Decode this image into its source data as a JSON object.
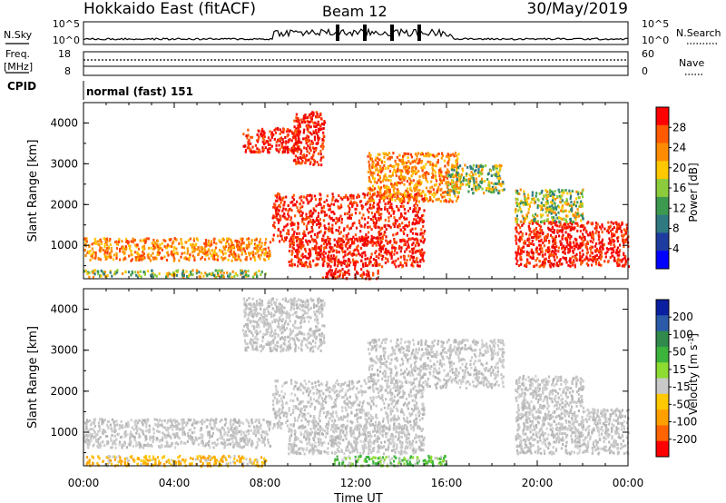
{
  "header": {
    "station": "Hokkaido East (fitACF)",
    "beam": "Beam 12",
    "date": "30/May/2019"
  },
  "status_panel": {
    "nsky_label": "N.Sky",
    "nsearch_label": "N.Search",
    "freq_label_line1": "Freq.",
    "freq_label_line2": "[MHz]",
    "nave_label": "Nave",
    "cpid_label": "CPID",
    "cpid_value": "normal (fast) 151",
    "noise_ticks_left": [
      "10^5",
      "10^0"
    ],
    "noise_ticks_right": [
      "10^5",
      "10^0"
    ],
    "freq_ticks": [
      "18",
      "8"
    ],
    "nave_ticks": [
      "60",
      "0"
    ]
  },
  "colorbars": {
    "power": {
      "label": "Power [dB]",
      "ticks": [
        "28",
        "24",
        "20",
        "16",
        "12",
        "8",
        "4"
      ],
      "colors": [
        "#ff0000",
        "#ff5a00",
        "#ff8c00",
        "#ffc800",
        "#8ccc3c",
        "#3c9a50",
        "#2f7a80",
        "#1e3ca0",
        "#0000ff"
      ]
    },
    "velocity": {
      "label": "Velocity [m s",
      "label_sup": "-1",
      "label_close": "]",
      "ticks": [
        "200",
        "100",
        "50",
        "15",
        "-15",
        "-50",
        "-100",
        "-200"
      ],
      "colors": [
        "#0a1ea0",
        "#2a5aa8",
        "#2f8a4c",
        "#3cb43c",
        "#8cdc32",
        "#c8c8c8",
        "#ffc800",
        "#ffa000",
        "#ff6400",
        "#ff0000"
      ]
    }
  },
  "chart_data": [
    {
      "type": "heatmap",
      "name": "power",
      "ylabel": "Slant Range [km]",
      "yticks": [
        "4000",
        "3000",
        "2000",
        "1000"
      ],
      "ylim": [
        180,
        4500
      ],
      "xlim": [
        0,
        24
      ],
      "regions": [
        {
          "t": [
            0.0,
            8.2
          ],
          "r": [
            650,
            1200
          ],
          "c": "orange"
        },
        {
          "t": [
            0.0,
            8.0
          ],
          "r": [
            250,
            420
          ],
          "c": "mixed"
        },
        {
          "t": [
            7.0,
            9.5
          ],
          "r": [
            3300,
            3900
          ],
          "c": "red"
        },
        {
          "t": [
            9.2,
            10.6
          ],
          "r": [
            3000,
            4300
          ],
          "c": "red"
        },
        {
          "t": [
            8.3,
            15.0
          ],
          "r": [
            1100,
            2300
          ],
          "c": "red"
        },
        {
          "t": [
            9.0,
            15.0
          ],
          "r": [
            500,
            1200
          ],
          "c": "red"
        },
        {
          "t": [
            10.5,
            13.0
          ],
          "r": [
            200,
            450
          ],
          "c": "red"
        },
        {
          "t": [
            12.5,
            16.5
          ],
          "r": [
            2100,
            3300
          ],
          "c": "orange"
        },
        {
          "t": [
            16.0,
            18.5
          ],
          "r": [
            2300,
            3000
          ],
          "c": "mixed"
        },
        {
          "t": [
            19.0,
            24.0
          ],
          "r": [
            500,
            1600
          ],
          "c": "red"
        },
        {
          "t": [
            19.0,
            22.0
          ],
          "r": [
            1600,
            2400
          ],
          "c": "mixed"
        }
      ]
    },
    {
      "type": "heatmap",
      "name": "velocity",
      "ylabel": "Slant Range [km]",
      "xlabel": "Time UT",
      "xticks": [
        "00:00",
        "04:00",
        "08:00",
        "12:00",
        "16:00",
        "20:00",
        "00:00"
      ],
      "yticks": [
        "4000",
        "3000",
        "2000",
        "1000"
      ],
      "ylim": [
        180,
        4500
      ],
      "xlim": [
        0,
        24
      ],
      "regions": [
        {
          "t": [
            0.0,
            8.2
          ],
          "r": [
            650,
            1350
          ],
          "c": "grey"
        },
        {
          "t": [
            0.0,
            8.0
          ],
          "r": [
            200,
            450
          ],
          "c": "yellow"
        },
        {
          "t": [
            7.0,
            10.6
          ],
          "r": [
            3000,
            4300
          ],
          "c": "grey"
        },
        {
          "t": [
            8.3,
            15.0
          ],
          "r": [
            1100,
            2300
          ],
          "c": "grey"
        },
        {
          "t": [
            9.0,
            15.0
          ],
          "r": [
            500,
            1200
          ],
          "c": "grey"
        },
        {
          "t": [
            11.0,
            16.0
          ],
          "r": [
            200,
            450
          ],
          "c": "green"
        },
        {
          "t": [
            12.5,
            18.5
          ],
          "r": [
            2100,
            3300
          ],
          "c": "grey"
        },
        {
          "t": [
            19.0,
            24.0
          ],
          "r": [
            500,
            1600
          ],
          "c": "grey"
        },
        {
          "t": [
            19.0,
            22.0
          ],
          "r": [
            1600,
            2400
          ],
          "c": "grey"
        }
      ]
    }
  ]
}
